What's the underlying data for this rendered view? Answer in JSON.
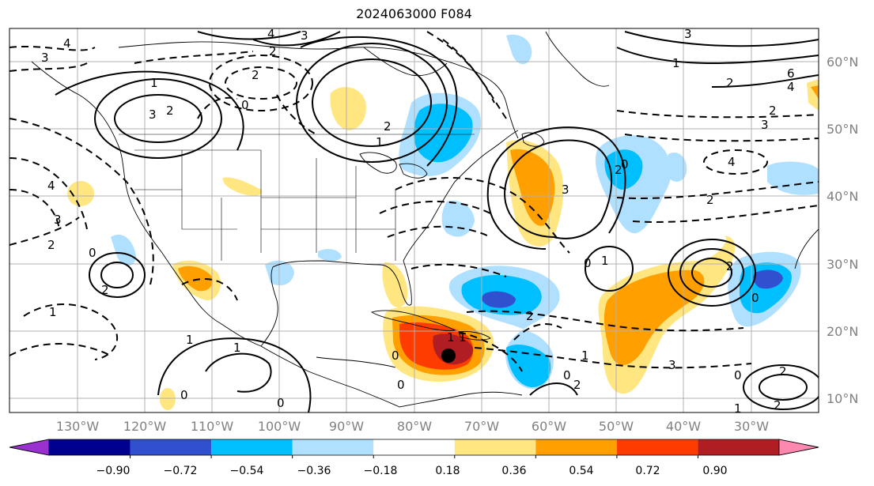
{
  "title": "2024063000 F084",
  "latitude_labels": [
    "60°N",
    "50°N",
    "40°N",
    "30°N",
    "20°N",
    "10°N"
  ],
  "longitude_labels": [
    "130°W",
    "120°W",
    "110°W",
    "100°W",
    "90°W",
    "80°W",
    "70°W",
    "60°W",
    "50°W",
    "40°W",
    "30°W"
  ],
  "colorbar": {
    "tick_labels": [
      "−0.90",
      "−0.72",
      "−0.54",
      "−0.36",
      "−0.18",
      "0.18",
      "0.36",
      "0.54",
      "0.72",
      "0.90"
    ],
    "colors": [
      "#9a30d0",
      "#000090",
      "#3050d0",
      "#00bfff",
      "#b0e0ff",
      "#ffffff",
      "#ffe680",
      "#ffa000",
      "#ff3c00",
      "#b01e24",
      "#ff88b0"
    ]
  },
  "contour_labels": {
    "positive": [
      "4",
      "3",
      "2",
      "1",
      "3",
      "2",
      "1",
      "2",
      "3",
      "2",
      "1",
      "3",
      "6",
      "4",
      "2",
      "2",
      "2",
      "3",
      "1",
      "1",
      "1",
      "2",
      "2",
      "2",
      "1"
    ],
    "negative": [
      "4",
      "3",
      "2",
      "1",
      "4",
      "3",
      "2",
      "2",
      "1",
      "1",
      "4",
      "2",
      "3",
      "2",
      "2",
      "1",
      "3",
      "2",
      "1",
      "1"
    ],
    "zero": [
      "0",
      "0",
      "0",
      "0",
      "0",
      "0",
      "0",
      "0",
      "0",
      "0",
      "0"
    ]
  },
  "marker": "storm-center-dot"
}
